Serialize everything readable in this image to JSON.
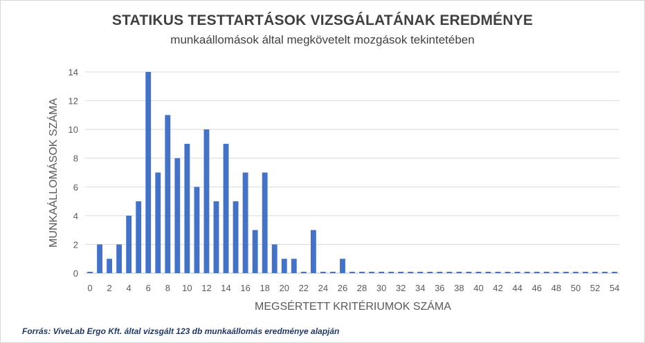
{
  "chart_data": {
    "type": "bar",
    "title": "STATIKUS TESTTARTÁSOK VIZSGÁLATÁNAK EREDMÉNYE",
    "subtitle": "munkaállomások által megkövetelt mozgások tekintetében",
    "xlabel": "MEGSÉRTETT KRITÉRIUMOK SZÁMA",
    "ylabel": "MUNKAÁLLOMÁSOK SZÁMA",
    "ylim": [
      0,
      14
    ],
    "yticks": [
      0,
      2,
      4,
      6,
      8,
      10,
      12,
      14
    ],
    "xticks": [
      0,
      2,
      4,
      6,
      8,
      10,
      12,
      14,
      16,
      18,
      20,
      22,
      24,
      26,
      28,
      30,
      32,
      34,
      36,
      38,
      40,
      42,
      44,
      46,
      48,
      50,
      52,
      54
    ],
    "grid": true,
    "bar_color": "#4472c4",
    "categories": [
      0,
      1,
      2,
      3,
      4,
      5,
      6,
      7,
      8,
      9,
      10,
      11,
      12,
      13,
      14,
      15,
      16,
      17,
      18,
      19,
      20,
      21,
      22,
      23,
      24,
      25,
      26,
      27,
      28,
      29,
      30,
      31,
      32,
      33,
      34,
      35,
      36,
      37,
      38,
      39,
      40,
      41,
      42,
      43,
      44,
      45,
      46,
      47,
      48,
      49,
      50,
      51,
      52,
      53,
      54
    ],
    "values": [
      0,
      2,
      1,
      2,
      4,
      5,
      14,
      7,
      11,
      8,
      9,
      6,
      10,
      5,
      9,
      5,
      7,
      3,
      7,
      2,
      1,
      1,
      0,
      3,
      0,
      0,
      1,
      0,
      0,
      0,
      0,
      0,
      0,
      0,
      0,
      0,
      0,
      0,
      0,
      0,
      0,
      0,
      0,
      0,
      0,
      0,
      0,
      0,
      0,
      0,
      0,
      0,
      0,
      0,
      0
    ]
  },
  "source_note": "Forrás:  ViveLab Ergo Kft. által vizsgált 123 db munkaállomás eredménye alapján"
}
